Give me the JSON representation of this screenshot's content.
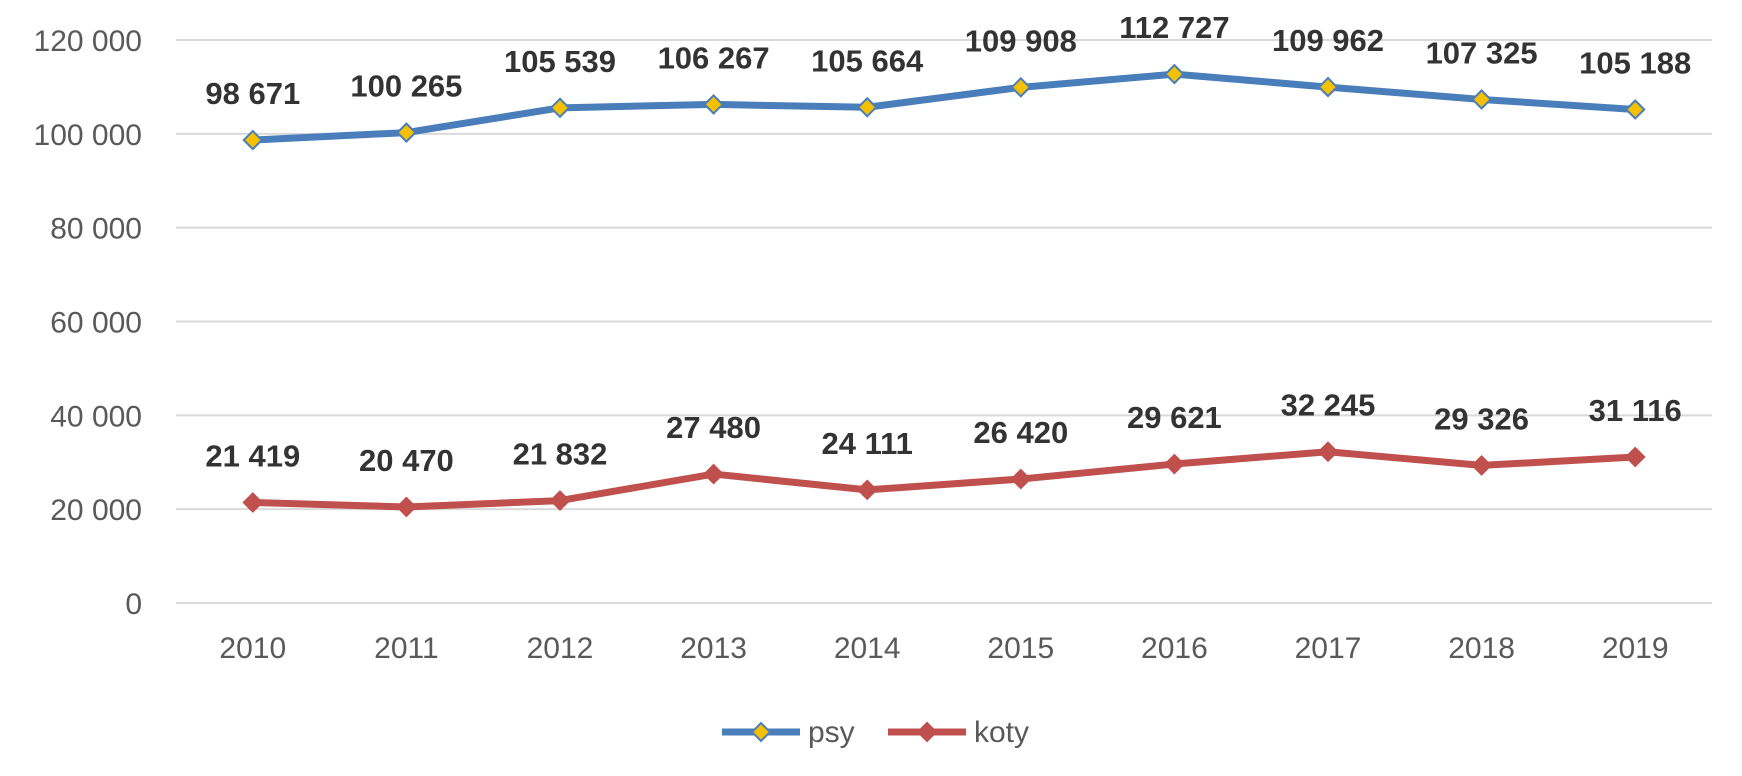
{
  "chart_data": {
    "type": "line",
    "title": "",
    "xlabel": "",
    "ylabel": "",
    "categories": [
      "2010",
      "2011",
      "2012",
      "2013",
      "2014",
      "2015",
      "2016",
      "2017",
      "2018",
      "2019"
    ],
    "ylim": [
      0,
      120000
    ],
    "yticks": [
      0,
      20000,
      40000,
      60000,
      80000,
      100000,
      120000
    ],
    "ytick_labels": [
      "0",
      "20 000",
      "40 000",
      "60 000",
      "80 000",
      "100 000",
      "120 000"
    ],
    "grid": true,
    "legend_position": "bottom",
    "series": [
      {
        "name": "psy",
        "color": "#4A7EBB",
        "marker_color": "#F5C000",
        "values": [
          98671,
          100265,
          105539,
          106267,
          105664,
          109908,
          112727,
          109962,
          107325,
          105188
        ],
        "labels": [
          "98 671",
          "100 265",
          "105 539",
          "106 267",
          "105 664",
          "109 908",
          "112 727",
          "109 962",
          "107 325",
          "105 188"
        ]
      },
      {
        "name": "koty",
        "color": "#C0504D",
        "marker_color": "#C0504D",
        "values": [
          21419,
          20470,
          21832,
          27480,
          24111,
          26420,
          29621,
          32245,
          29326,
          31116
        ],
        "labels": [
          "21 419",
          "20 470",
          "21 832",
          "27 480",
          "24 111",
          "26 420",
          "29 621",
          "32 245",
          "29 326",
          "31 116"
        ]
      }
    ]
  }
}
